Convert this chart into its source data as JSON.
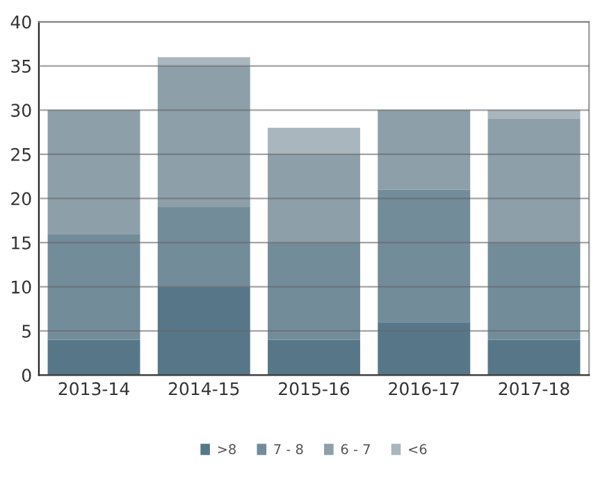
{
  "chart_data": {
    "type": "bar",
    "stacked": true,
    "categories": [
      "2013-14",
      "2014-15",
      "2015-16",
      "2016-17",
      "2017-18"
    ],
    "series": [
      {
        "name": ">8",
        "color": "#577789",
        "values": [
          4,
          10,
          4,
          6,
          4
        ]
      },
      {
        "name": "7 - 8",
        "color": "#738c9a",
        "values": [
          12,
          9,
          11,
          15,
          11
        ]
      },
      {
        "name": "6 - 7",
        "color": "#8d9fa9",
        "values": [
          14,
          16,
          10,
          9,
          14
        ]
      },
      {
        "name": "<6",
        "color": "#a9b6bd",
        "values": [
          0,
          1,
          3,
          0,
          1
        ]
      }
    ],
    "ylim": [
      0,
      40
    ],
    "yticks": [
      0,
      5,
      10,
      15,
      20,
      25,
      30,
      35,
      40
    ],
    "grid": "y",
    "legend": "bottom"
  }
}
